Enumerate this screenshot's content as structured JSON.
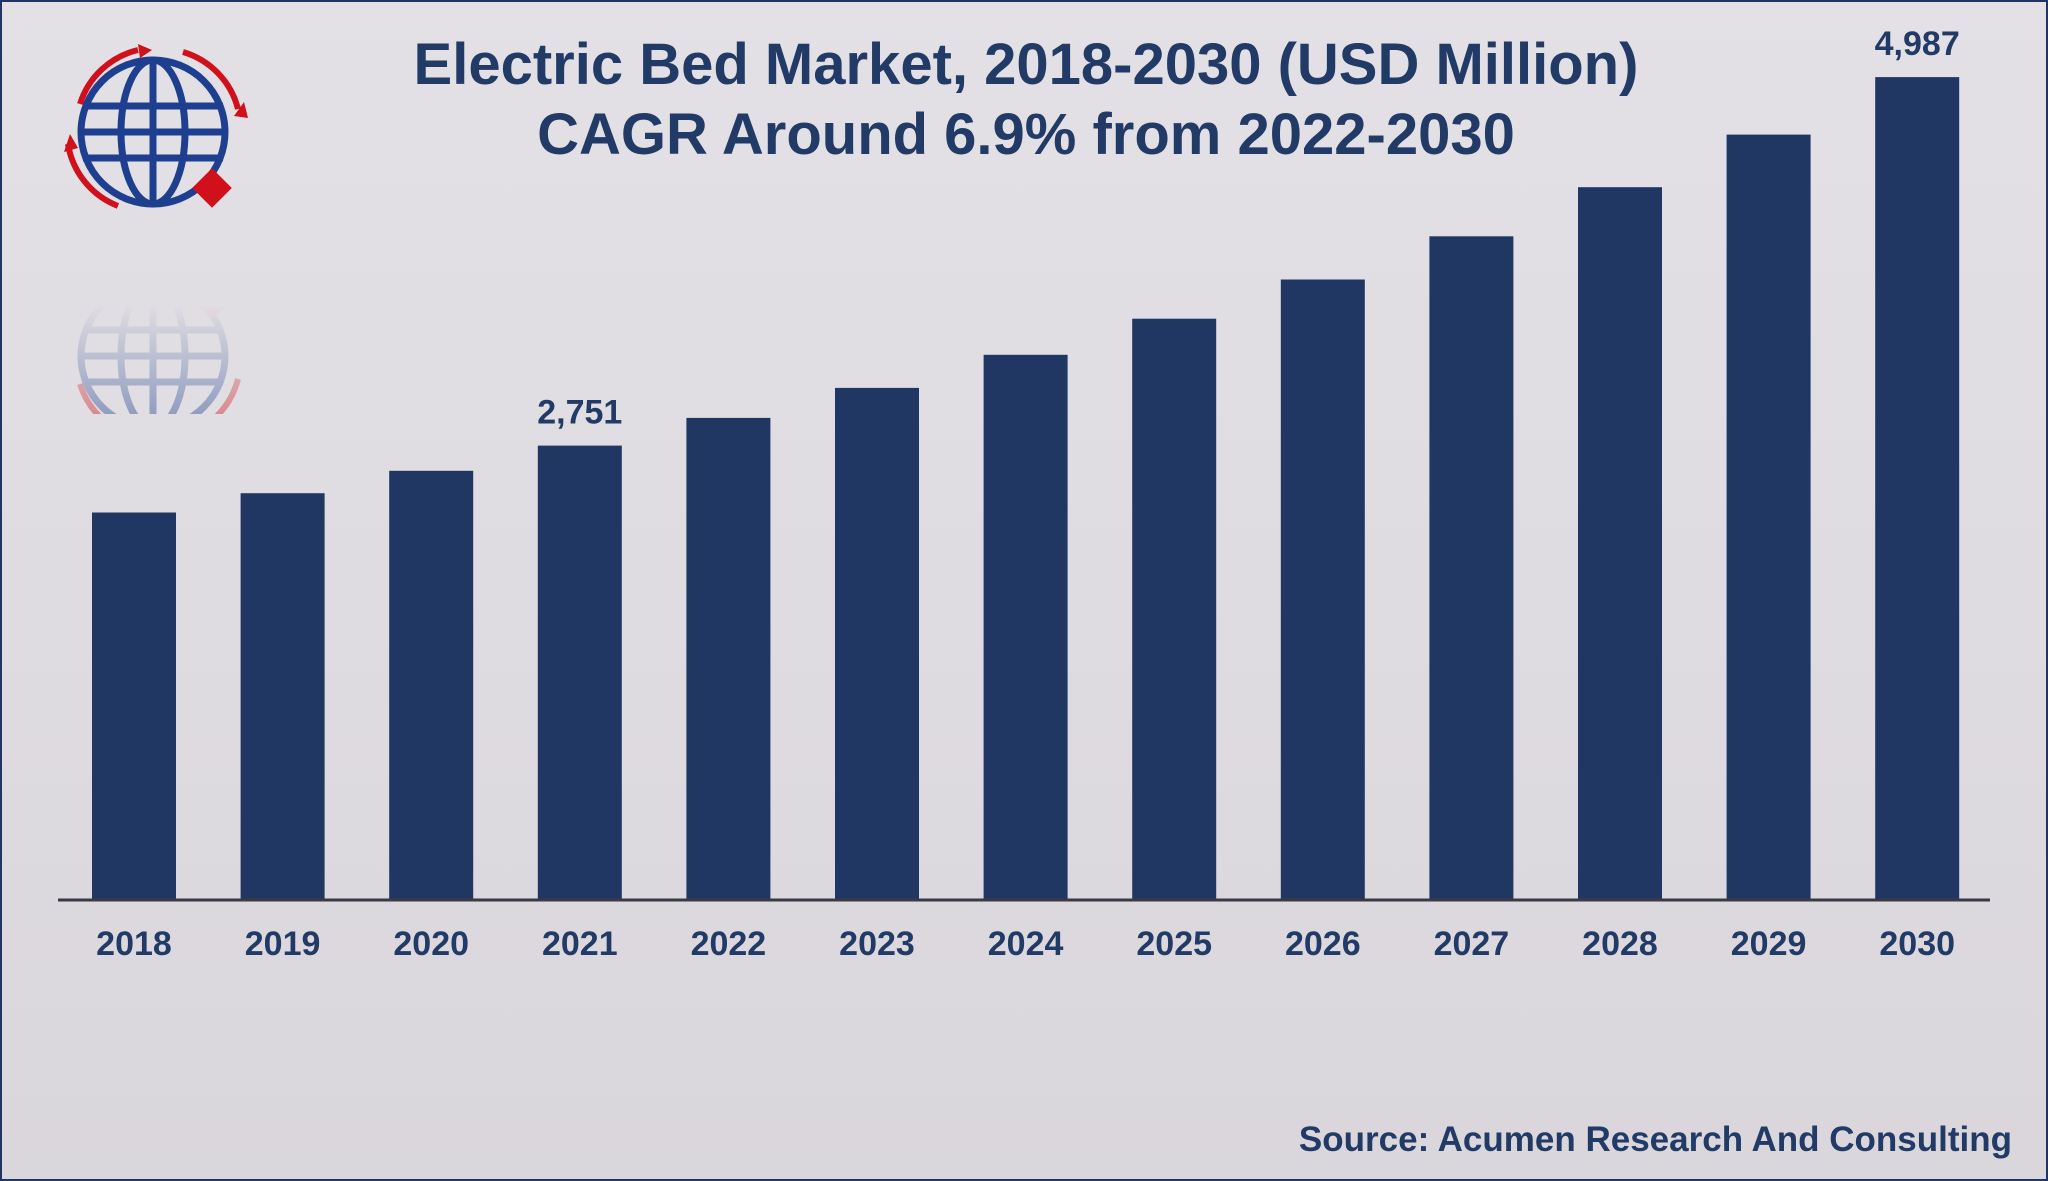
{
  "colors": {
    "bar": "#213763",
    "text": "#213a66",
    "axis": "#3a3a45",
    "logo_blue": "#1e3f8f",
    "logo_red": "#d0101a"
  },
  "logo": {
    "icon": "globe-logo-icon"
  },
  "source_text": "Source: Acumen Research And Consulting",
  "chart_data": {
    "type": "bar",
    "title": "Electric Bed Market, 2018-2030 (USD Million)",
    "subtitle": "CAGR Around 6.9% from 2022-2030",
    "xlabel": "",
    "ylabel": "",
    "categories": [
      "2018",
      "2019",
      "2020",
      "2021",
      "2022",
      "2023",
      "2024",
      "2025",
      "2026",
      "2027",
      "2028",
      "2029",
      "2030"
    ],
    "values": [
      2345,
      2462,
      2598,
      2751,
      2919,
      3101,
      3302,
      3521,
      3759,
      4021,
      4319,
      4638,
      4987
    ],
    "data_labels": [
      {
        "category": "2021",
        "text": "2,751"
      },
      {
        "category": "2030",
        "text": "4,987"
      }
    ],
    "ylim": [
      0,
      5200
    ],
    "grid": false,
    "legend": "none"
  }
}
